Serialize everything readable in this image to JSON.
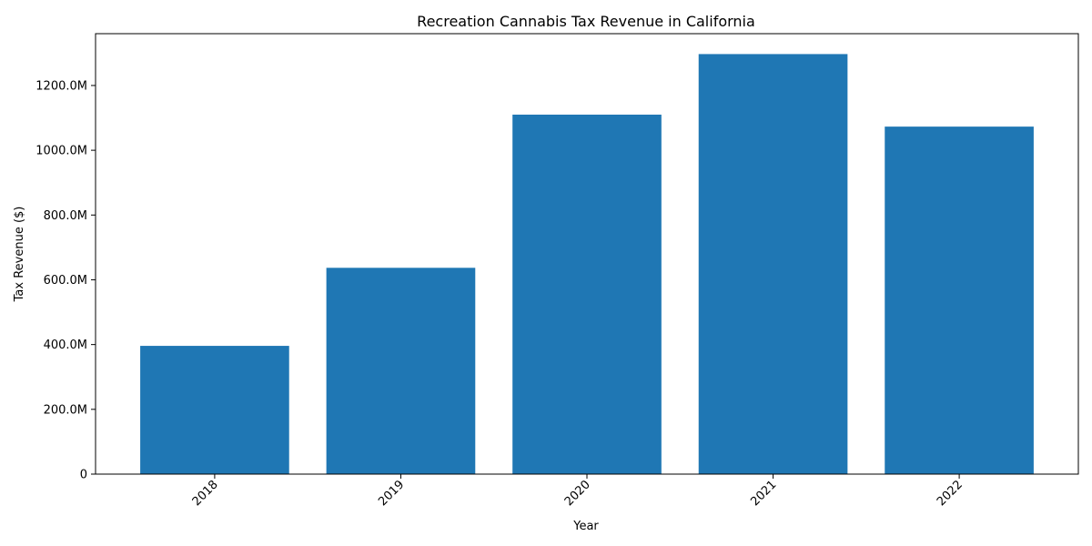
{
  "chart_data": {
    "type": "bar",
    "title": "Recreation Cannabis Tax Revenue in California",
    "xlabel": "Year",
    "ylabel": "Tax Revenue ($)",
    "categories": [
      "2018",
      "2019",
      "2020",
      "2021",
      "2022"
    ],
    "values": [
      396000000,
      637000000,
      1110000000,
      1297000000,
      1073000000
    ],
    "ylim": [
      0,
      1360000000
    ],
    "y_ticks": [
      0,
      200000000,
      400000000,
      600000000,
      800000000,
      1000000000,
      1200000000
    ],
    "y_tick_labels": [
      "0",
      "200.0M",
      "400.0M",
      "600.0M",
      "800.0M",
      "1000.0M",
      "1200.0M"
    ],
    "x_tick_rotation_deg": 45,
    "bar_color": "#1f77b4",
    "grid": false,
    "legend": "none"
  }
}
